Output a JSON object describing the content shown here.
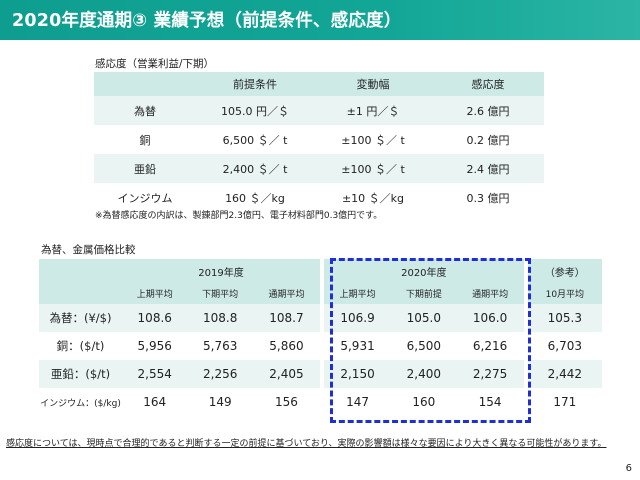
{
  "header": {
    "title": "2020年度通期③ 業績予想（前提条件、感応度）"
  },
  "sensitivity": {
    "caption": "感応度（営業利益/下期）",
    "columns": [
      "",
      "前提条件",
      "変動幅",
      "感応度"
    ],
    "rows": [
      [
        "為替",
        "105.0 円／＄",
        "±1 円／＄",
        "2.6 億円"
      ],
      [
        "銅",
        "6,500 ＄／ t",
        "±100 ＄／ t",
        "0.2 億円"
      ],
      [
        "亜鉛",
        "2,400 ＄／ t",
        "±100 ＄／ t",
        "2.4 億円"
      ],
      [
        "インジウム",
        "160 ＄／kg",
        "±10 ＄／kg",
        "0.3 億円"
      ]
    ],
    "note": "※為替感応度の内訳は、製錬部門2.3億円、電子材料部門0.3億円です。"
  },
  "prices": {
    "caption": "為替、金属価格比較",
    "year_headers": [
      "2019年度",
      "2020年度",
      "（参考）"
    ],
    "sub_headers": [
      "上期平均",
      "下期平均",
      "通期平均",
      "上期平均",
      "下期前提",
      "通期平均",
      "10月平均"
    ],
    "rows": [
      {
        "label": "為替：(¥/$)",
        "values": [
          "108.6",
          "108.8",
          "108.7",
          "106.9",
          "105.0",
          "106.0",
          "105.3"
        ]
      },
      {
        "label": "銅：($/t)",
        "values": [
          "5,956",
          "5,763",
          "5,860",
          "5,931",
          "6,500",
          "6,216",
          "6,703"
        ]
      },
      {
        "label": "亜鉛：($/t)",
        "values": [
          "2,554",
          "2,256",
          "2,405",
          "2,150",
          "2,400",
          "2,275",
          "2,442"
        ]
      },
      {
        "label": "インジウム：($/kg)",
        "values": [
          "164",
          "149",
          "156",
          "147",
          "160",
          "154",
          "171"
        ]
      }
    ]
  },
  "footnote": "感応度については、現時点で合理的であると判断する一定の前提に基づいており、実際の影響額は様々な要因により大きく異なる可能性があります。",
  "page_number": "6",
  "colors": {
    "header": "#12a696",
    "table_header": "#cdeae7",
    "table_stripe": "#e9f4f3",
    "highlight_dash": "#1f2fd6"
  }
}
